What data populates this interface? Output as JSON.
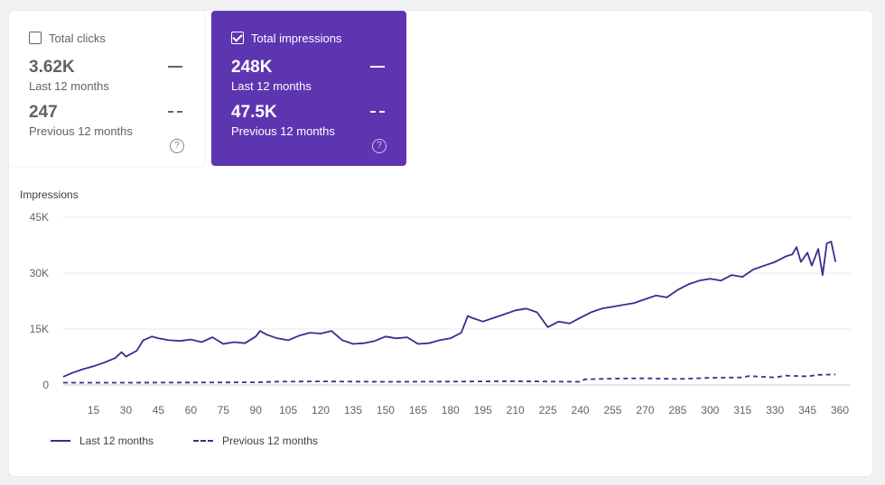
{
  "cards": {
    "clicks": {
      "label": "Total clicks",
      "checked": false,
      "current_value": "3.62K",
      "current_label": "Last 12 months",
      "previous_value": "247",
      "previous_label": "Previous 12 months",
      "help": "?"
    },
    "impressions": {
      "label": "Total impressions",
      "checked": true,
      "current_value": "248K",
      "current_label": "Last 12 months",
      "previous_value": "47.5K",
      "previous_label": "Previous 12 months",
      "help": "?"
    }
  },
  "colors": {
    "accent": "#5e35b1",
    "line": "#3d2b8e",
    "grid": "#e8e8e8"
  },
  "chart_data": {
    "type": "line",
    "title": "",
    "ylabel": "Impressions",
    "xlabel": "",
    "ylim": [
      0,
      45000
    ],
    "xlim": [
      1,
      365
    ],
    "x_ticks": [
      15,
      30,
      45,
      60,
      75,
      90,
      105,
      120,
      135,
      150,
      165,
      180,
      195,
      210,
      225,
      240,
      255,
      270,
      285,
      300,
      315,
      330,
      345,
      360
    ],
    "y_ticks": [
      {
        "v": 0,
        "label": "0"
      },
      {
        "v": 15000,
        "label": "15K"
      },
      {
        "v": 30000,
        "label": "30K"
      },
      {
        "v": 45000,
        "label": "45K"
      }
    ],
    "grid": true,
    "legend_position": "bottom-left",
    "series": [
      {
        "name": "Last 12 months",
        "style": "solid",
        "points": [
          [
            1,
            2200
          ],
          [
            5,
            3200
          ],
          [
            10,
            4200
          ],
          [
            15,
            5000
          ],
          [
            20,
            6000
          ],
          [
            25,
            7200
          ],
          [
            28,
            8800
          ],
          [
            30,
            7600
          ],
          [
            35,
            9200
          ],
          [
            38,
            12000
          ],
          [
            42,
            13000
          ],
          [
            45,
            12500
          ],
          [
            50,
            12000
          ],
          [
            55,
            11800
          ],
          [
            60,
            12200
          ],
          [
            65,
            11500
          ],
          [
            70,
            12800
          ],
          [
            75,
            11000
          ],
          [
            80,
            11500
          ],
          [
            85,
            11200
          ],
          [
            90,
            13000
          ],
          [
            92,
            14500
          ],
          [
            95,
            13500
          ],
          [
            100,
            12500
          ],
          [
            105,
            12000
          ],
          [
            110,
            13200
          ],
          [
            115,
            14000
          ],
          [
            120,
            13800
          ],
          [
            125,
            14500
          ],
          [
            130,
            12000
          ],
          [
            135,
            11000
          ],
          [
            140,
            11200
          ],
          [
            145,
            11800
          ],
          [
            150,
            13000
          ],
          [
            155,
            12500
          ],
          [
            160,
            12800
          ],
          [
            165,
            11000
          ],
          [
            170,
            11200
          ],
          [
            175,
            12000
          ],
          [
            180,
            12500
          ],
          [
            185,
            14000
          ],
          [
            188,
            18500
          ],
          [
            190,
            18000
          ],
          [
            195,
            17000
          ],
          [
            200,
            18000
          ],
          [
            205,
            19000
          ],
          [
            210,
            20000
          ],
          [
            215,
            20500
          ],
          [
            220,
            19500
          ],
          [
            225,
            15500
          ],
          [
            230,
            17000
          ],
          [
            235,
            16500
          ],
          [
            240,
            18000
          ],
          [
            245,
            19500
          ],
          [
            250,
            20500
          ],
          [
            255,
            21000
          ],
          [
            260,
            21500
          ],
          [
            265,
            22000
          ],
          [
            270,
            23000
          ],
          [
            275,
            24000
          ],
          [
            280,
            23500
          ],
          [
            285,
            25500
          ],
          [
            290,
            27000
          ],
          [
            295,
            28000
          ],
          [
            300,
            28500
          ],
          [
            305,
            28000
          ],
          [
            310,
            29500
          ],
          [
            315,
            29000
          ],
          [
            320,
            31000
          ],
          [
            325,
            32000
          ],
          [
            330,
            33000
          ],
          [
            335,
            34500
          ],
          [
            338,
            35000
          ],
          [
            340,
            37000
          ],
          [
            342,
            33000
          ],
          [
            345,
            35500
          ],
          [
            347,
            32000
          ],
          [
            350,
            36500
          ],
          [
            352,
            29500
          ],
          [
            354,
            38000
          ],
          [
            356,
            38500
          ],
          [
            358,
            33000
          ]
        ]
      },
      {
        "name": "Previous 12 months",
        "style": "dashed",
        "points": [
          [
            1,
            600
          ],
          [
            30,
            600
          ],
          [
            60,
            650
          ],
          [
            90,
            700
          ],
          [
            100,
            900
          ],
          [
            120,
            950
          ],
          [
            150,
            850
          ],
          [
            180,
            900
          ],
          [
            210,
            1000
          ],
          [
            240,
            850
          ],
          [
            242,
            1500
          ],
          [
            255,
            1700
          ],
          [
            270,
            1800
          ],
          [
            285,
            1600
          ],
          [
            300,
            1900
          ],
          [
            315,
            2000
          ],
          [
            318,
            2400
          ],
          [
            330,
            2000
          ],
          [
            335,
            2500
          ],
          [
            345,
            2300
          ],
          [
            350,
            2700
          ],
          [
            358,
            2800
          ]
        ]
      }
    ]
  }
}
